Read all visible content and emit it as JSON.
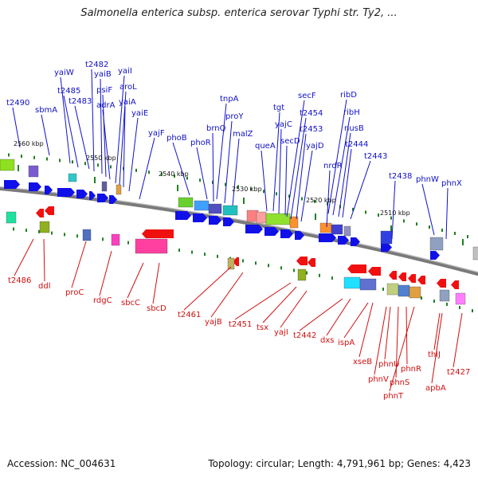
{
  "title": "Salmonella enterica subsp. enterica serovar Typhi str. Ty2, ...",
  "accession": "Accession: NC_004631",
  "summary": "Topology: circular; Length: 4,791,961 bp; Genes: 4,423",
  "colors": {
    "top_label": "#1010c8",
    "bottom_label": "#d01010",
    "forward": "#1010e8",
    "reverse": "#f01010",
    "backbone": "#888888",
    "tick": "#208020"
  },
  "kbp_ticks": [
    "2560 kbp",
    "2550 kbp",
    "2540 kbp",
    "2530 kbp",
    "2520 kbp",
    "2510 kbp"
  ],
  "top_labels": [
    "t2490",
    "sbmA",
    "yaiW",
    "t2485",
    "t2483",
    "t2482",
    "yaiB",
    "psiF",
    "adrA",
    "yaiI",
    "aroL",
    "yaiA",
    "yaiE",
    "yajF",
    "phoB",
    "phoR",
    "brnQ",
    "tnpA",
    "proY",
    "malZ",
    "queA",
    "tgt",
    "yajC",
    "secD",
    "secF",
    "t2454",
    "t2453",
    "yajD",
    "nrdR",
    "ribD",
    "ribH",
    "nusB",
    "t2444",
    "t2443",
    "t2438",
    "phnW",
    "phnX"
  ],
  "bottom_labels": [
    "t2486",
    "ddl",
    "proC",
    "rdgC",
    "sbcC",
    "sbcD",
    "t2461",
    "yajB",
    "t2451",
    "tsx",
    "yajI",
    "t2442",
    "dxs",
    "ispA",
    "xseB",
    "phnU",
    "phnV",
    "phnS",
    "phnR",
    "phnT",
    "thiJ",
    "apbA",
    "t2427"
  ]
}
